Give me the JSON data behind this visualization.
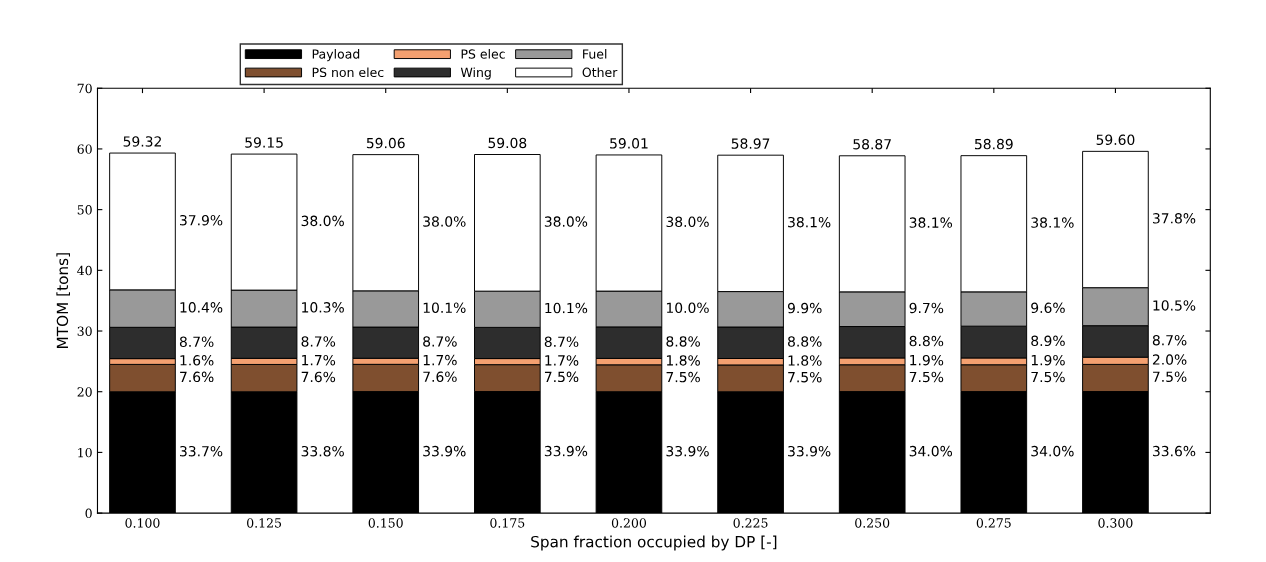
{
  "chart_data": {
    "type": "bar",
    "stacked": true,
    "xlabel": "Span fraction occupied by DP [-]",
    "ylabel": "MTOM [tons]",
    "categories": [
      "0.100",
      "0.125",
      "0.150",
      "0.175",
      "0.200",
      "0.225",
      "0.250",
      "0.275",
      "0.300"
    ],
    "series": [
      {
        "name": "Payload",
        "color": "#000000",
        "values": [
          19.99,
          19.99,
          20.02,
          20.03,
          20.0,
          19.99,
          20.02,
          20.02,
          20.03
        ]
      },
      {
        "name": "PS non elec",
        "color": "#7f4f2f",
        "values": [
          4.51,
          4.5,
          4.49,
          4.43,
          4.43,
          4.42,
          4.42,
          4.42,
          4.47
        ]
      },
      {
        "name": "PS elec",
        "color": "#f4a070",
        "values": [
          0.95,
          1.01,
          1.0,
          1.0,
          1.06,
          1.06,
          1.12,
          1.12,
          1.19
        ]
      },
      {
        "name": "Wing",
        "color": "#2d2d2d",
        "values": [
          5.16,
          5.15,
          5.14,
          5.14,
          5.19,
          5.19,
          5.18,
          5.24,
          5.19
        ]
      },
      {
        "name": "Fuel",
        "color": "#999999",
        "values": [
          6.17,
          6.09,
          5.97,
          5.97,
          5.9,
          5.84,
          5.71,
          5.65,
          6.26
        ]
      },
      {
        "name": "Other",
        "color": "#ffffff",
        "values": [
          22.54,
          22.41,
          22.44,
          22.51,
          22.43,
          22.47,
          22.42,
          22.44,
          22.46
        ]
      }
    ],
    "totals": [
      "59.32",
      "59.15",
      "59.06",
      "59.08",
      "59.01",
      "58.97",
      "58.87",
      "58.89",
      "59.60"
    ],
    "annotations": [
      "33.7%",
      "7.6%",
      "1.6%",
      "8.7%",
      "10.4%",
      "37.9%",
      "33.8%",
      "7.6%",
      "1.7%",
      "8.7%",
      "10.3%",
      "38.0%",
      "33.9%",
      "7.6%",
      "1.7%",
      "8.7%",
      "10.1%",
      "38.0%",
      "33.9%",
      "7.5%",
      "1.7%",
      "8.7%",
      "10.1%",
      "38.0%",
      "33.9%",
      "7.5%",
      "1.8%",
      "8.8%",
      "10.0%",
      "38.0%",
      "33.9%",
      "7.5%",
      "1.8%",
      "8.8%",
      "9.9%",
      "38.1%",
      "34.0%",
      "7.5%",
      "1.9%",
      "8.8%",
      "9.7%",
      "38.1%",
      "34.0%",
      "7.5%",
      "1.9%",
      "8.9%",
      "9.6%",
      "38.1%",
      "33.6%",
      "7.5%",
      "2.0%",
      "8.7%",
      "10.5%",
      "37.8%"
    ],
    "ylim": [
      0,
      70
    ],
    "yticks": [
      0,
      10,
      20,
      30,
      40,
      50,
      60,
      70
    ],
    "legend": "top",
    "grid": false
  }
}
